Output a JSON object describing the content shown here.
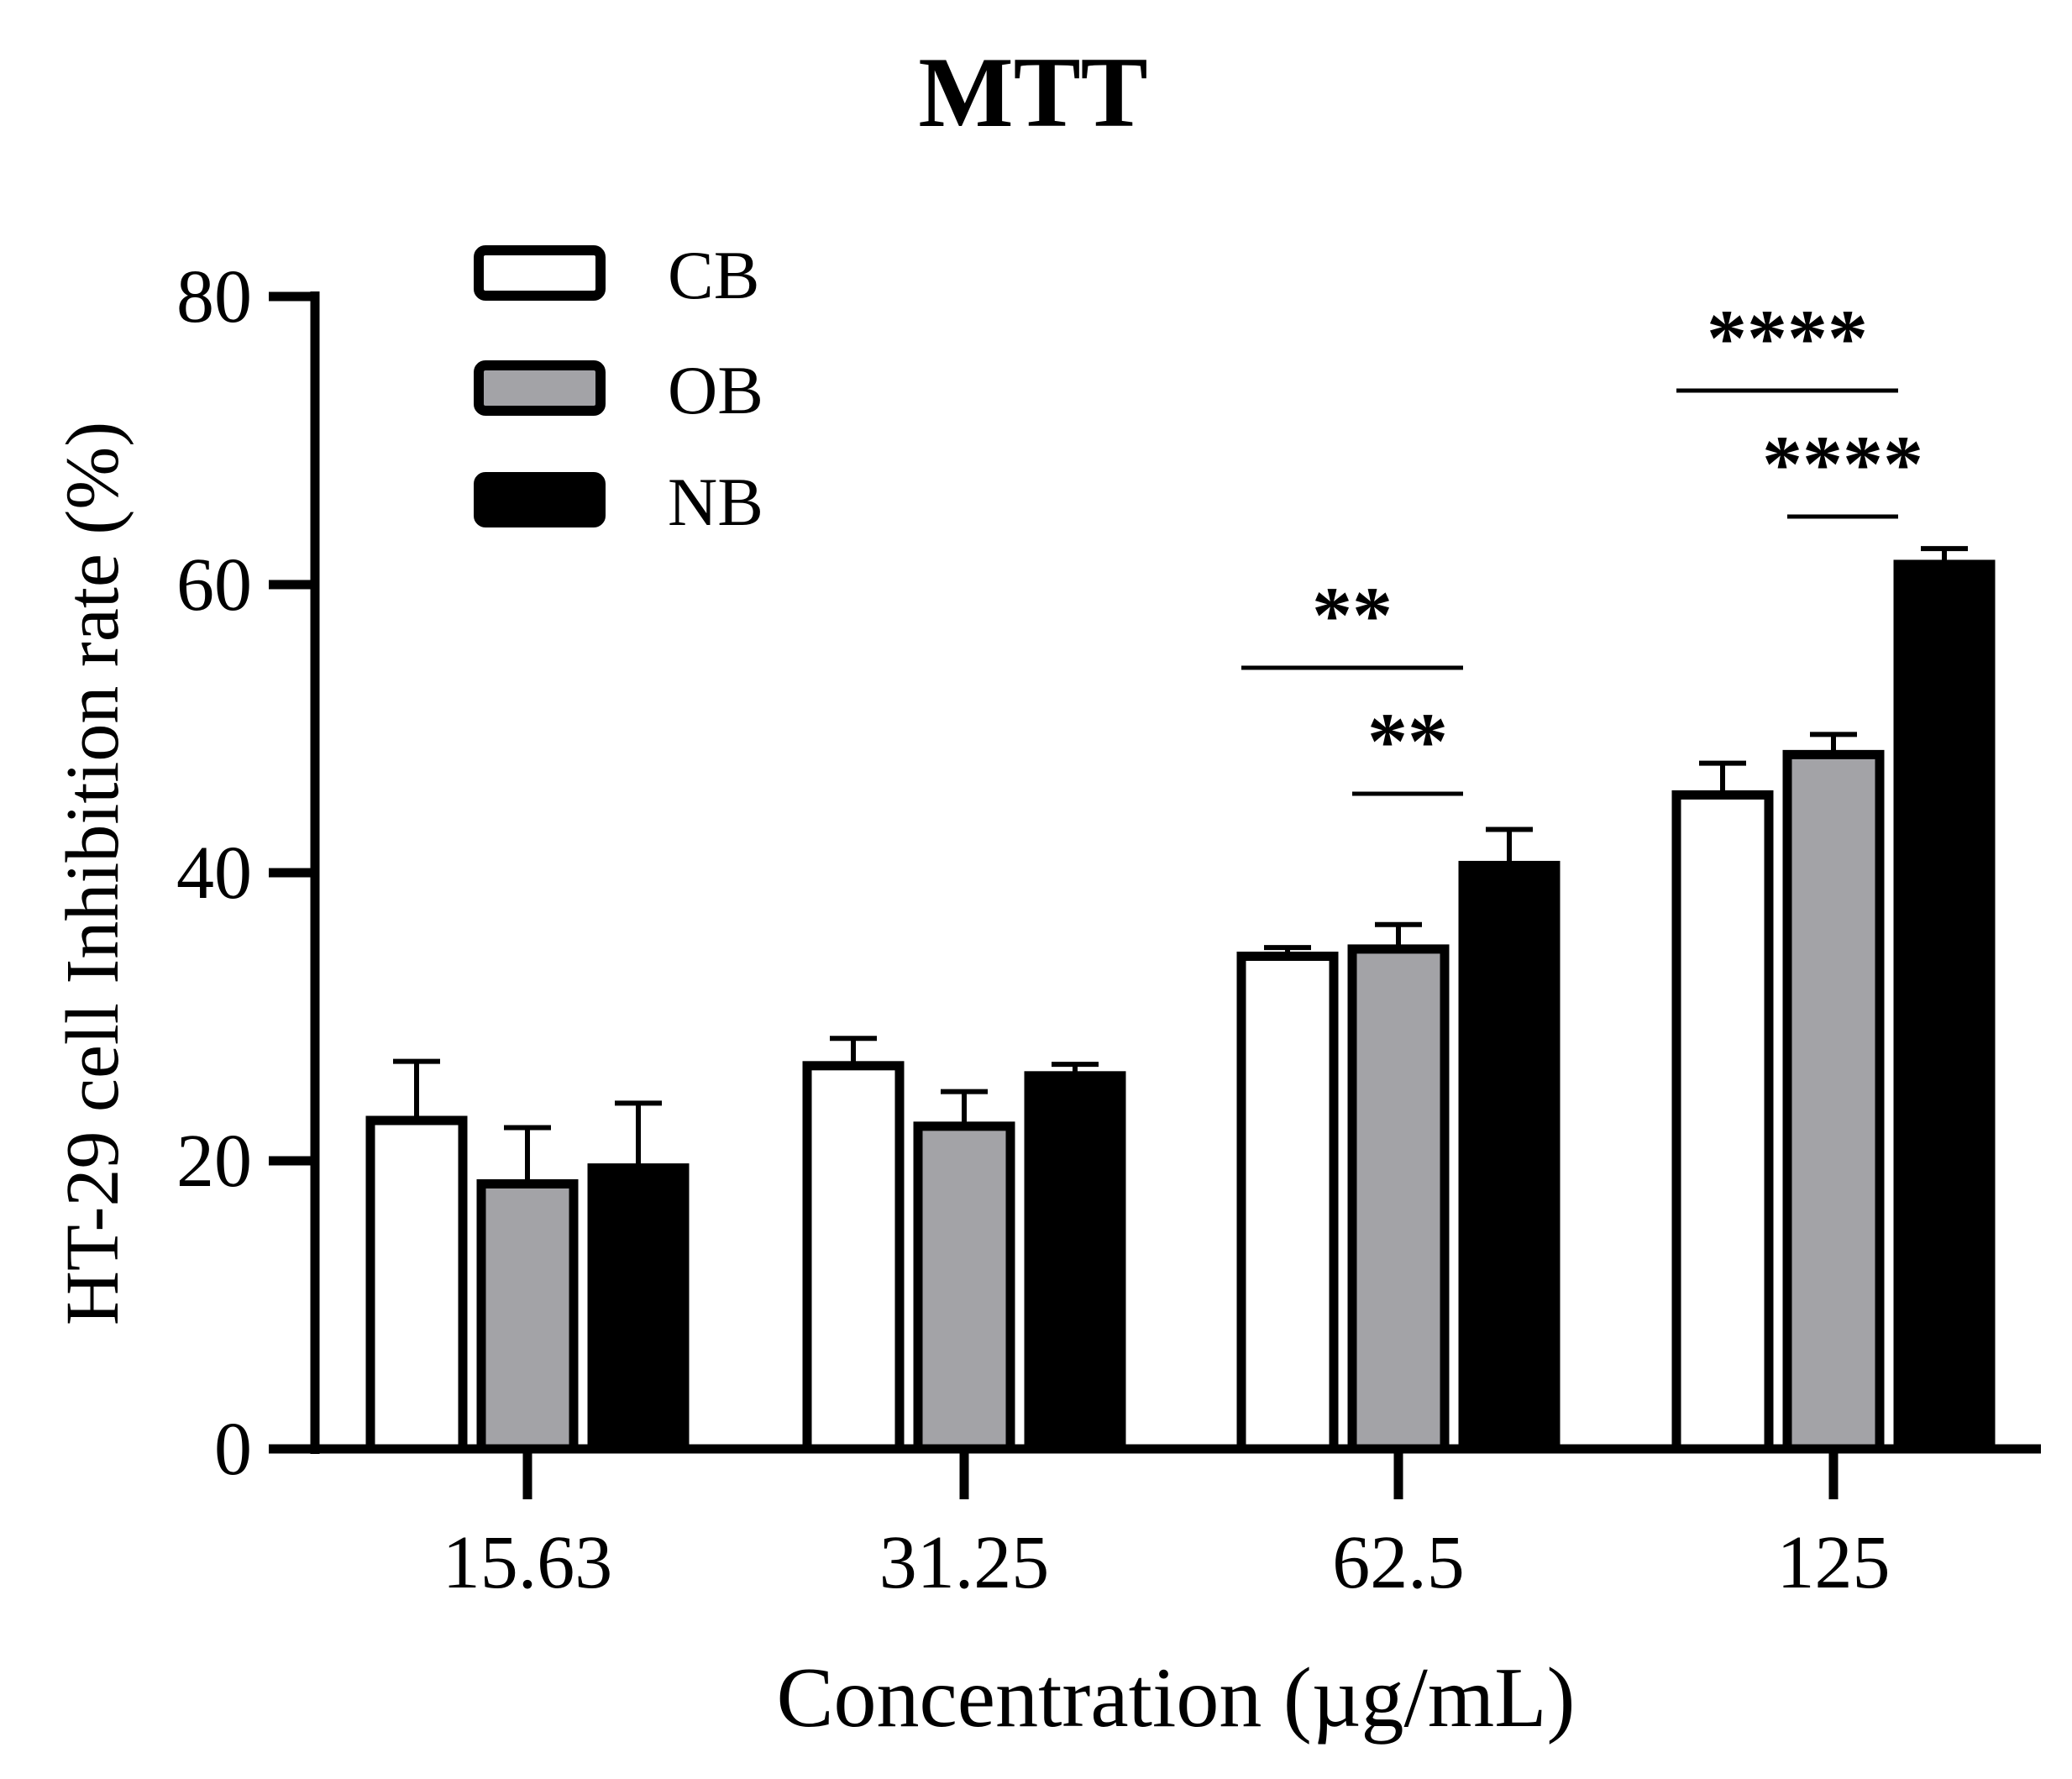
{
  "chart_data": {
    "type": "bar",
    "title": "MTT",
    "xlabel": "Concentration (µg/mL)",
    "ylabel": "HT-29 cell Inhibition rate (%)",
    "categories": [
      "15.63",
      "31.25",
      "62.5",
      "125"
    ],
    "ylim": [
      0,
      80
    ],
    "yticks": [
      "0",
      "20",
      "40",
      "60",
      "80"
    ],
    "grid": false,
    "legend_position": "top-left",
    "series": [
      {
        "name": "CB",
        "color": "#ffffff",
        "values": [
          22.8,
          26.6,
          34.2,
          45.4
        ],
        "errors": [
          4.1,
          1.9,
          0.6,
          2.2
        ]
      },
      {
        "name": "OB",
        "color": "#a3a3a7",
        "values": [
          18.4,
          22.4,
          34.7,
          48.2
        ],
        "errors": [
          3.9,
          2.4,
          1.7,
          1.4
        ]
      },
      {
        "name": "NB",
        "color": "#000000",
        "values": [
          19.5,
          25.9,
          40.5,
          61.4
        ],
        "errors": [
          4.5,
          0.8,
          2.5,
          1.1
        ]
      }
    ],
    "significance": [
      {
        "category": "62.5",
        "from_series": "CB",
        "to_series": "NB",
        "label": "**"
      },
      {
        "category": "62.5",
        "from_series": "OB",
        "to_series": "NB",
        "label": "**"
      },
      {
        "category": "125",
        "from_series": "CB",
        "to_series": "NB",
        "label": "****"
      },
      {
        "category": "125",
        "from_series": "OB",
        "to_series": "NB",
        "label": "****"
      }
    ]
  }
}
